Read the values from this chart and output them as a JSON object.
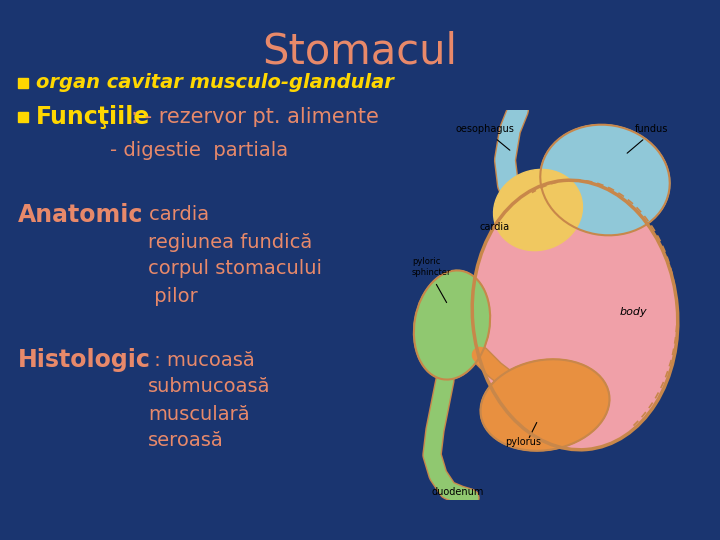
{
  "title": "Stomacul",
  "title_color": "#E8896A",
  "title_fontsize": 30,
  "background_color": "#1a3570",
  "bullet_color": "#FFD700",
  "bullet1_text": "organ cavitar musculo-glandular",
  "bullet1_color": "#FFD700",
  "bullet1_fontsize": 14,
  "bullet2_label": "Funcţiile",
  "bullet2_label_color": "#FFD700",
  "bullet2_label_fontsize": 17,
  "bullet2_rest": ": - rezervor pt. alimente",
  "bullet2_rest_color": "#E8896A",
  "bullet2_fontsize": 15,
  "line3_text": "- digestie  partiala",
  "line3_color": "#E8896A",
  "line3_fontsize": 14,
  "anatomic_label": "Anatomic",
  "anatomic_label_color": "#E8896A",
  "anatomic_label_fontsize": 17,
  "anatomic_colon": " : ",
  "anatomic_lines": [
    "cardia",
    "regiunea fundică",
    "corpul stomacului",
    " pilor"
  ],
  "anatomic_color": "#E8896A",
  "anatomic_fontsize": 14,
  "histologic_label": "Histologic",
  "histologic_label_color": "#E8896A",
  "histologic_label_fontsize": 17,
  "histologic_colon": " : ",
  "histologic_lines": [
    "mucoasă",
    "submucoasă",
    "musculară",
    "seroasă"
  ],
  "histologic_color": "#E8896A",
  "histologic_fontsize": 14,
  "img_bg": "#e8e0d0",
  "stomach_body_color": "#F0A0A8",
  "stomach_border_color": "#C8874A",
  "fundus_color": "#90C8D8",
  "cardia_color": "#F0C860",
  "pylorus_color": "#E89040",
  "green_color": "#90C870",
  "oesophagus_color": "#90C8D8"
}
